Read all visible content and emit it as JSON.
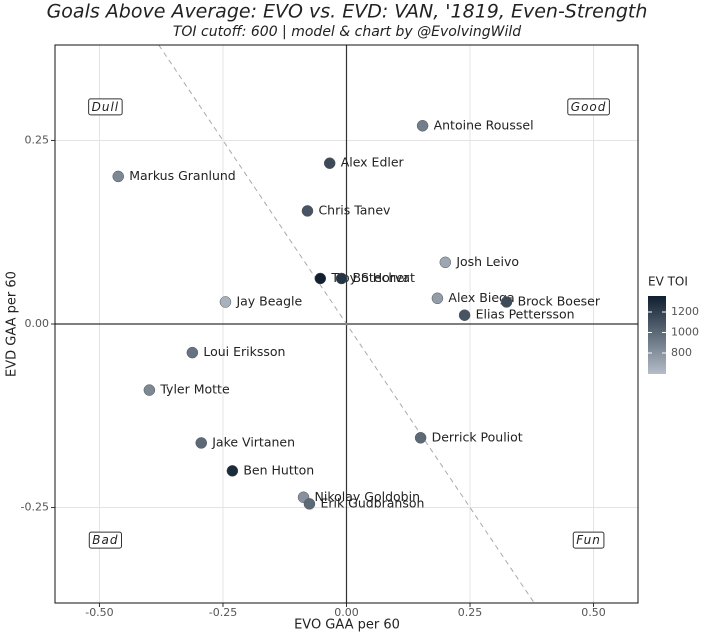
{
  "chart_data": {
    "type": "scatter",
    "title": "Goals Above Average: EVO vs. EVD: VAN, '1819, Even-Strength",
    "subtitle": "TOI cutoff: 600 | model & chart by @EvolvingWild",
    "x_label": "EVO GAA per 60",
    "y_label": "EVD GAA per 60",
    "labels": [
      "Antoine Roussel",
      "Alex Edler",
      "Markus Granlund",
      "Chris Tanev",
      "Josh Leivo",
      "Troy Stecher",
      "Bo Horvat",
      "Jay Beagle",
      "Alex Biega",
      "Brock Boeser",
      "Elias Pettersson",
      "Loui Eriksson",
      "Tyler Motte",
      "Derrick Pouliot",
      "Jake Virtanen",
      "Ben Hutton",
      "Nikolay Goldobin",
      "Erik Gudbranson"
    ],
    "x": [
      0.154,
      -0.034,
      -0.462,
      -0.079,
      0.2,
      -0.053,
      -0.01,
      -0.245,
      0.184,
      0.324,
      0.239,
      -0.312,
      -0.399,
      0.15,
      -0.294,
      -0.231,
      -0.087,
      -0.075
    ],
    "y": [
      0.27,
      0.219,
      0.201,
      0.154,
      0.084,
      0.062,
      0.062,
      0.03,
      0.035,
      0.03,
      0.012,
      -0.039,
      -0.09,
      -0.155,
      -0.162,
      -0.2,
      -0.236,
      -0.245
    ],
    "toi": [
      900,
      1150,
      850,
      1100,
      700,
      1350,
      1250,
      650,
      750,
      1150,
      1100,
      950,
      850,
      1000,
      1000,
      1300,
      800,
      1000
    ],
    "xlim": [
      -0.59,
      0.59
    ],
    "ylim": [
      -0.38,
      0.38
    ],
    "xticks": [
      {
        "value": -0.5,
        "label": "-0.50"
      },
      -0.25,
      {
        "value": 0,
        "label": "0.00"
      },
      0.25,
      {
        "value": 0.5,
        "label": "0.50"
      }
    ],
    "yticks": [
      -0.25,
      {
        "value": 0,
        "label": "0.00"
      },
      0.25
    ],
    "grid": true,
    "diagonal": {
      "slope": -1,
      "intercept": 0
    },
    "quadrants": [
      {
        "text": "Dull",
        "x": -0.488,
        "y": 0.295
      },
      {
        "text": "Good",
        "x": 0.49,
        "y": 0.295
      },
      {
        "text": "Bad",
        "x": -0.488,
        "y": -0.295
      },
      {
        "text": "Fun",
        "x": 0.49,
        "y": -0.295
      }
    ],
    "colorbar": {
      "title": "EV TOI",
      "range": [
        595,
        1356
      ],
      "ticks": [
        800,
        1000,
        1200
      ],
      "color_low": "#b4bdc8",
      "color_high": "#0f1f30"
    }
  }
}
